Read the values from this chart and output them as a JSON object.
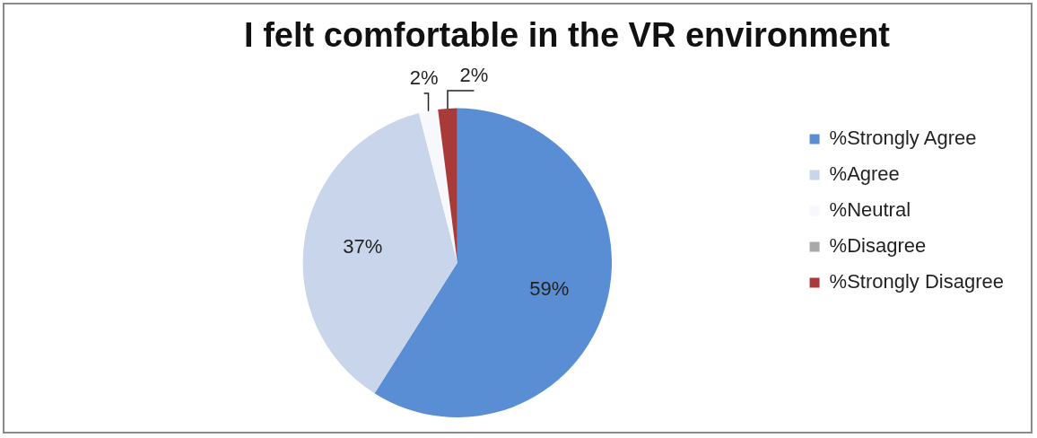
{
  "chart_data": {
    "type": "pie",
    "title": "I felt comfortable in the VR environment",
    "categories": [
      "%Strongly Agree",
      "%Agree",
      "%Neutral",
      "%Disagree",
      "%Strongly Disagree"
    ],
    "values": [
      59,
      37,
      2,
      0,
      2
    ],
    "colors": [
      "#5a8ed4",
      "#c8d5ea",
      "#f7f8fb",
      "#a9a9a9",
      "#a83a3a"
    ],
    "value_labels": [
      "59%",
      "37%",
      "2%",
      null,
      "2%"
    ],
    "legend": "right"
  }
}
